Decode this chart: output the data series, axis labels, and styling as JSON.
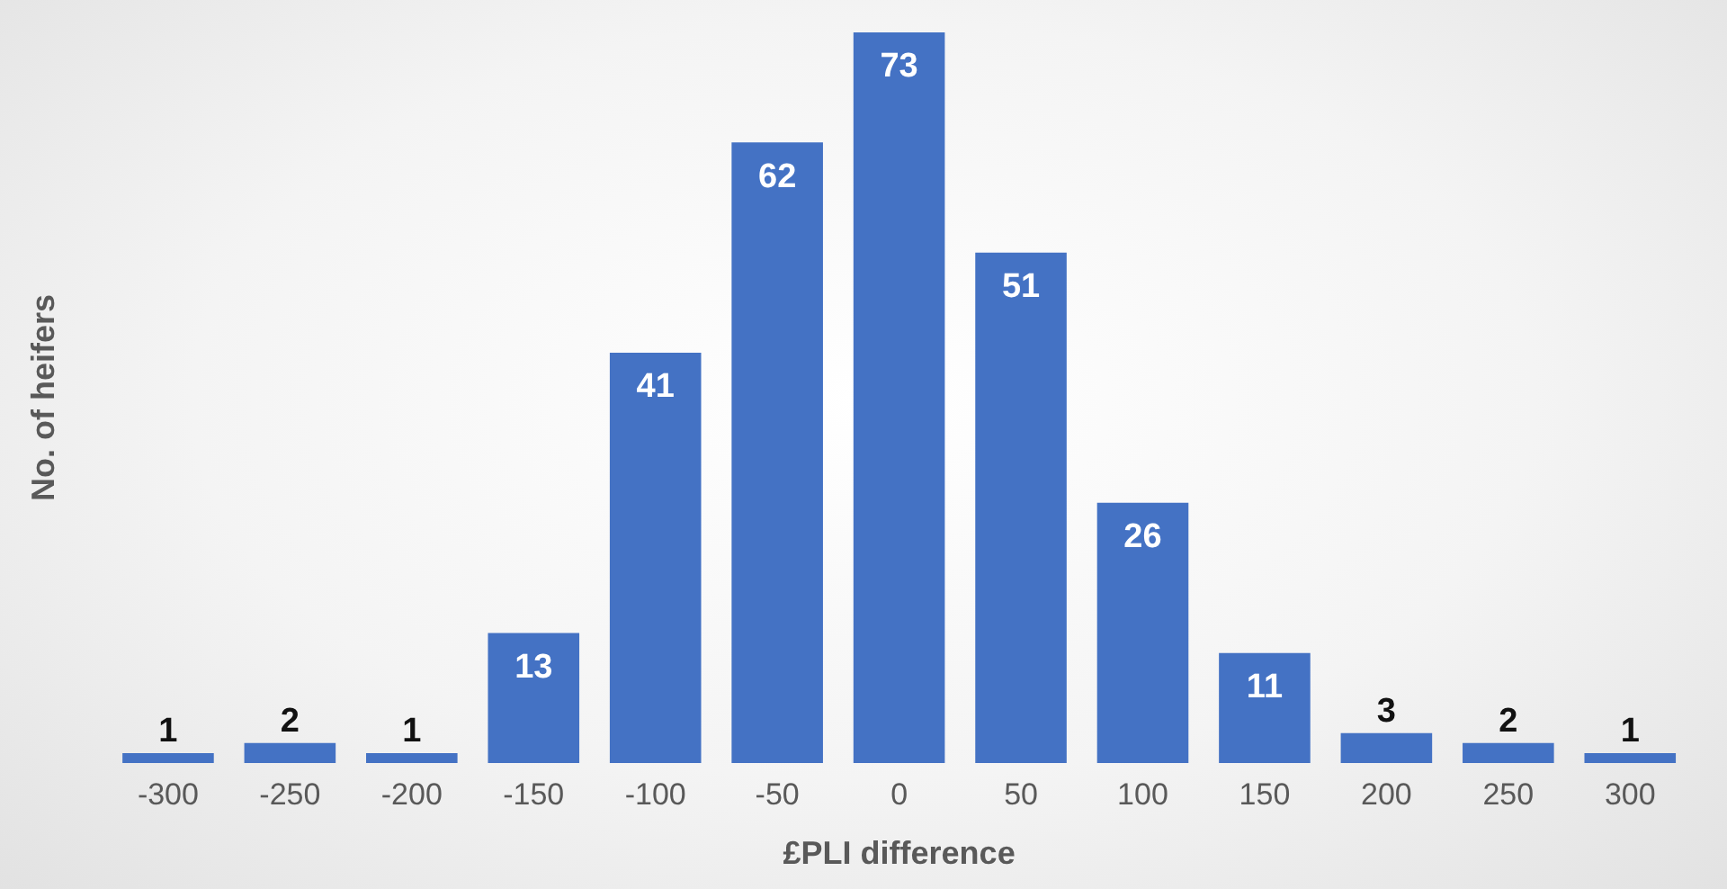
{
  "chart_data": {
    "type": "bar",
    "xlabel": "£PLI difference",
    "ylabel": "No. of heifers",
    "categories": [
      "-300",
      "-250",
      "-200",
      "-150",
      "-100",
      "-50",
      "0",
      "50",
      "100",
      "150",
      "200",
      "250",
      "300"
    ],
    "values": [
      1,
      2,
      1,
      13,
      41,
      62,
      73,
      51,
      26,
      11,
      3,
      2,
      1
    ],
    "color": "#4472c4",
    "data_labels": true,
    "grid": false,
    "legend": false
  }
}
